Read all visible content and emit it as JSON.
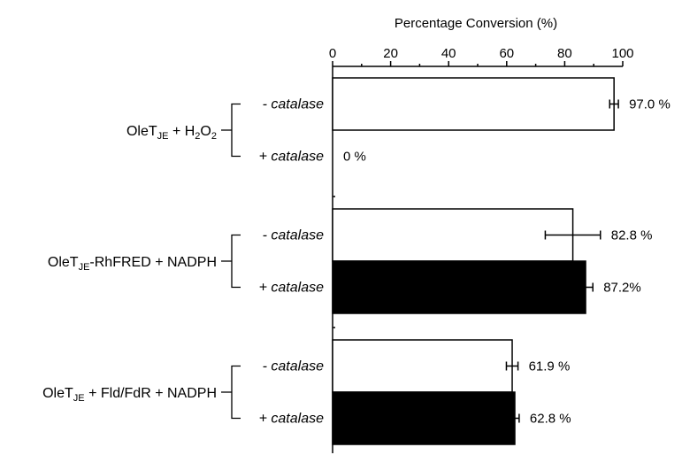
{
  "chart_data": {
    "type": "bar",
    "orientation": "horizontal",
    "xlabel": "Percentage Conversion (%)",
    "xlim": [
      0,
      100
    ],
    "xticks": [
      0,
      20,
      40,
      60,
      80,
      100
    ],
    "grid": false,
    "groups": [
      {
        "label": {
          "base": "OleT",
          "sub": "JE",
          "rest": " + H",
          "sub2": "2",
          "rest2": "O",
          "sub3": "2"
        },
        "label_text": "OleTJE + H2O2",
        "bars": [
          {
            "condition": "- catalase",
            "value": 97.0,
            "error": 1.5,
            "value_label": "97.0 %",
            "fill": "#ffffff"
          },
          {
            "condition": "+ catalase",
            "value": 0,
            "error": 0,
            "value_label": "0 %",
            "fill": "#000000"
          }
        ]
      },
      {
        "label": {
          "base": "OleT",
          "sub": "JE",
          "rest": "-RhFRED + NADPH"
        },
        "label_text": "OleTJE-RhFRED + NADPH",
        "bars": [
          {
            "condition": "- catalase",
            "value": 82.8,
            "error": 9.5,
            "value_label": "82.8 %",
            "fill": "#ffffff"
          },
          {
            "condition": "+ catalase",
            "value": 87.2,
            "error": 2.5,
            "value_label": "87.2%",
            "fill": "#000000"
          }
        ]
      },
      {
        "label": {
          "base": "OleT",
          "sub": "JE",
          "rest": " + Fld/FdR + NADPH"
        },
        "label_text": "OleTJE + Fld/FdR + NADPH",
        "bars": [
          {
            "condition": "- catalase",
            "value": 61.9,
            "error": 2.0,
            "value_label": "61.9 %",
            "fill": "#ffffff"
          },
          {
            "condition": "+ catalase",
            "value": 62.8,
            "error": 1.5,
            "value_label": "62.8 %",
            "fill": "#000000"
          }
        ]
      }
    ]
  }
}
